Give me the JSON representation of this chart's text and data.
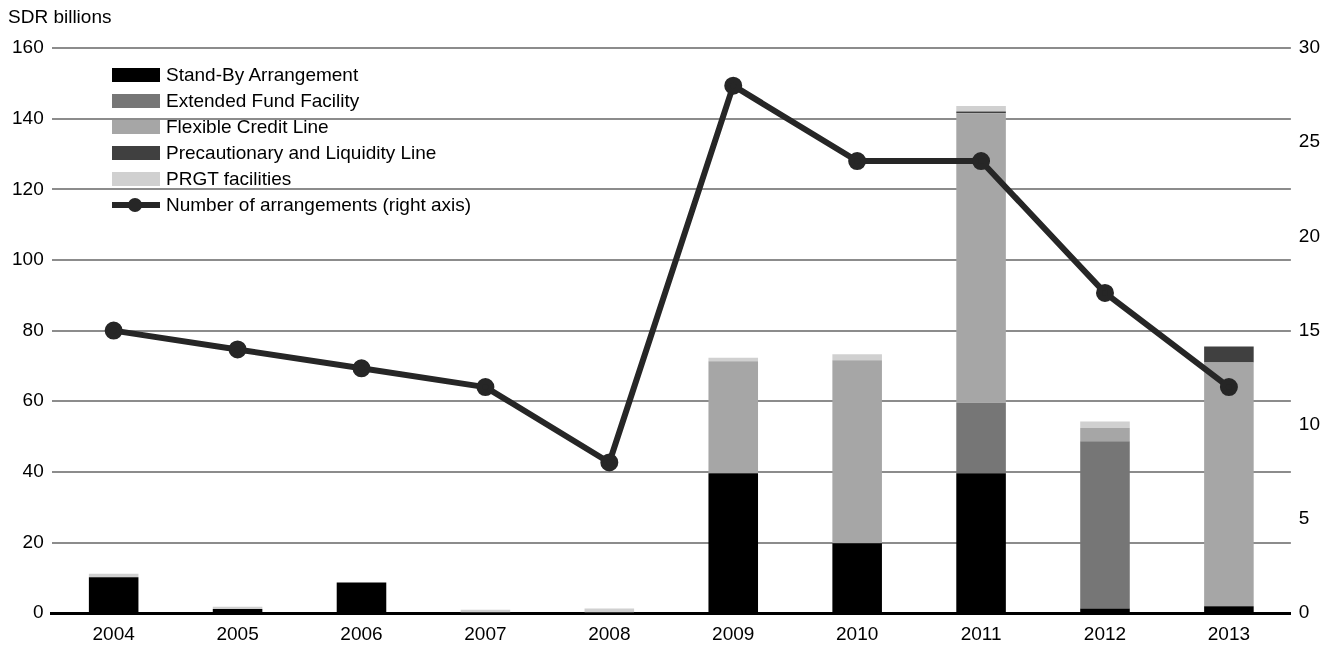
{
  "chart_data": {
    "type": "bar",
    "ylabel": "SDR billions",
    "stacked": true,
    "categories": [
      "2004",
      "2005",
      "2006",
      "2007",
      "2008",
      "2009",
      "2010",
      "2011",
      "2012",
      "2013"
    ],
    "series": [
      {
        "name": "Stand-By Arrangement",
        "color": "#000000",
        "values": [
          10.2,
          1.2,
          8.7,
          0,
          0,
          39.6,
          19.8,
          39.6,
          1.3,
          2.0
        ]
      },
      {
        "name": "Extended Fund Facility",
        "color": "#767676",
        "values": [
          0,
          0,
          0,
          0,
          0,
          0,
          0,
          20.0,
          47.4,
          0
        ]
      },
      {
        "name": "Flexible Credit Line",
        "color": "#a6a6a6",
        "values": [
          0,
          0,
          0,
          0,
          0,
          31.7,
          51.8,
          81.9,
          3.7,
          69.0
        ]
      },
      {
        "name": "Precautionary and Liquidity Line",
        "color": "#404040",
        "values": [
          0,
          0,
          0,
          0,
          0,
          0,
          0,
          0.5,
          0,
          4.5
        ]
      },
      {
        "name": "PRGT facilities",
        "color": "#d0d0d0",
        "values": [
          1.0,
          0.6,
          0,
          1.0,
          1.3,
          1.0,
          1.7,
          1.6,
          1.9,
          0
        ]
      },
      {
        "name": "Number of arrangements (right axis)",
        "type": "line",
        "axis": "y2",
        "color": "#262626",
        "marker": "circle",
        "values": [
          15,
          14,
          13,
          12,
          8,
          28,
          24,
          24,
          17,
          12
        ]
      }
    ],
    "ylim": [
      0,
      160
    ],
    "yticks": [
      0,
      20,
      40,
      60,
      80,
      100,
      120,
      140,
      160
    ],
    "y2lim": [
      0,
      30
    ],
    "y2ticks": [
      0,
      5,
      10,
      15,
      20,
      25,
      30
    ],
    "grid": "y",
    "legend": "top left"
  }
}
